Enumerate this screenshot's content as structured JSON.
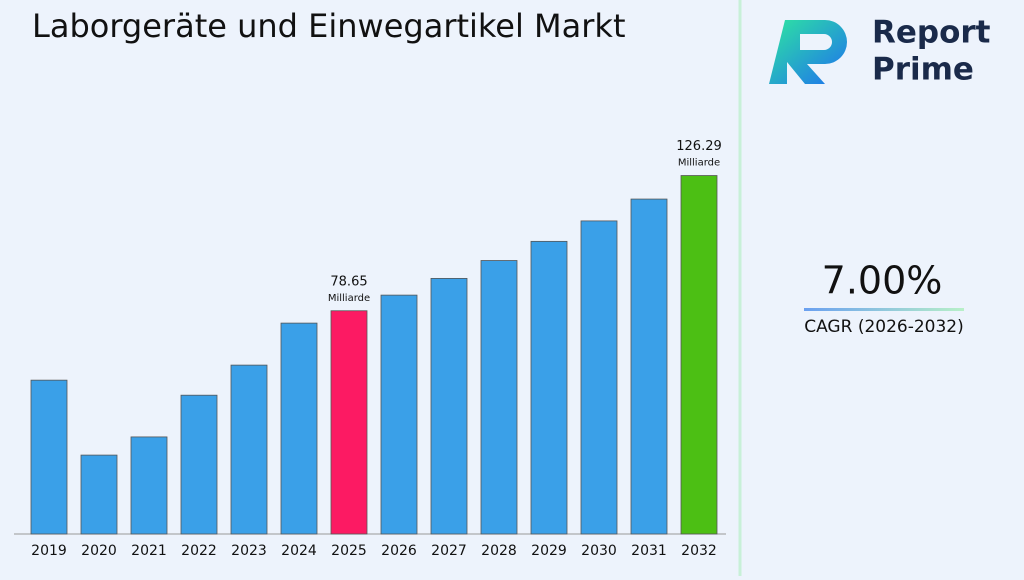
{
  "chart_data": {
    "type": "bar",
    "title": "Laborgeräte und Einwegartikel Markt",
    "categories": [
      "2019",
      "2020",
      "2021",
      "2022",
      "2023",
      "2024",
      "2025",
      "2026",
      "2027",
      "2028",
      "2029",
      "2030",
      "2031",
      "2032"
    ],
    "values": [
      54.2,
      27.8,
      34.2,
      48.9,
      59.5,
      74.3,
      78.65,
      84.16,
      90.05,
      96.35,
      103.1,
      110.3,
      118.0,
      126.29
    ],
    "color": "#3aa0e8",
    "colors": [
      "#3aa0e8",
      "#3aa0e8",
      "#3aa0e8",
      "#3aa0e8",
      "#3aa0e8",
      "#3aa0e8",
      "#fc1a63",
      "#3aa0e8",
      "#3aa0e8",
      "#3aa0e8",
      "#3aa0e8",
      "#3aa0e8",
      "#3aa0e8",
      "#4cbf14"
    ],
    "value_unit": "Milliarde",
    "ylim": [
      0,
      130
    ]
  },
  "cagr": {
    "value": "7.00%",
    "label": "CAGR (2026-2032)"
  },
  "logo": {
    "line1": "Report",
    "line2": "Prime"
  }
}
